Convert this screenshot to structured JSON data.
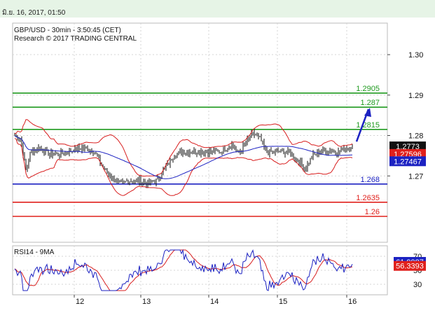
{
  "header": {
    "timestamp": "มิ.ย. 16, 2017, 01:50"
  },
  "chart_data": {
    "type": "candlestick",
    "title": "GBP/USD - 30min - 3:50:45 (CET)",
    "subtitle": "Research © 2017 TRADING CENTRAL",
    "x_ticks": [
      "12",
      "13",
      "14",
      "15",
      "16"
    ],
    "y_ticks": [
      "1.30",
      "1.29",
      "1.28",
      "1.27"
    ],
    "ylim": [
      1.2574,
      1.3033
    ],
    "levels": [
      {
        "value": 1.2905,
        "label": "1.2905",
        "color": "#1f9a1f"
      },
      {
        "value": 1.287,
        "label": "1.287",
        "color": "#1f9a1f"
      },
      {
        "value": 1.2815,
        "label": "1.2815",
        "color": "#1f9a1f"
      },
      {
        "value": 1.268,
        "label": "1.268",
        "color": "#1c22c2"
      },
      {
        "value": 1.2635,
        "label": "1.2635",
        "color": "#e0201c"
      },
      {
        "value": 1.26,
        "label": "1.26",
        "color": "#e0201c"
      }
    ],
    "price_tags": [
      {
        "label": "1.2773",
        "value": 1.2773,
        "color": "#111111"
      },
      {
        "label": "1.27596",
        "value": 1.27596,
        "color": "#e0201c"
      },
      {
        "label": "1.27467",
        "value": 1.27467,
        "color": "#1c22c2"
      }
    ],
    "rsi": {
      "title": "RSI14 - 9MA",
      "y_ticks": [
        "70",
        "50",
        "30"
      ],
      "ylim": [
        20,
        80
      ],
      "tags": [
        {
          "label": "61.9987",
          "value": 62,
          "color": "#1c22c2"
        },
        {
          "label": "56.3393",
          "value": 56.3,
          "color": "#e0201c"
        }
      ]
    },
    "colors": {
      "price": "#111111",
      "bollinger": "#d81e1e",
      "ma": "#1c22c2",
      "arrow": "#1c22c2"
    }
  }
}
